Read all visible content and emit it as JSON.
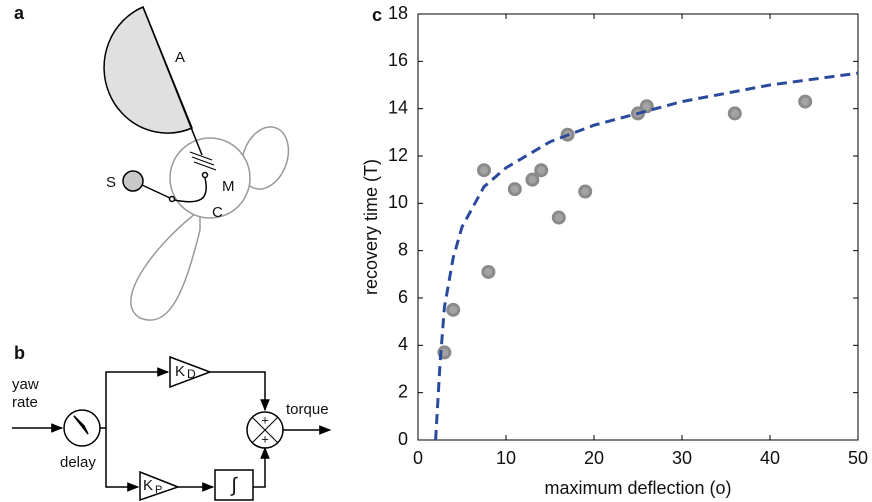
{
  "panel_a": {
    "label": "a",
    "labels": [
      "A",
      "M",
      "S",
      "C"
    ]
  },
  "panel_b": {
    "label": "b",
    "input": [
      "yaw",
      "rate"
    ],
    "delay": "delay",
    "output": "torque",
    "kd": "K",
    "kd_sub": "D",
    "kp": "K",
    "kp_sub": "P",
    "integral": "∫",
    "signs": [
      "+",
      "+"
    ]
  },
  "chart_data": {
    "type": "scatter",
    "panel_label": "c",
    "xlabel": "maximum deflection (o)",
    "ylabel": "recovery time (T)",
    "xlim": [
      0,
      50
    ],
    "ylim": [
      0,
      18
    ],
    "xticks": [
      0,
      10,
      20,
      30,
      40,
      50
    ],
    "yticks": [
      0,
      2,
      4,
      6,
      8,
      10,
      12,
      14,
      16,
      18
    ],
    "points": {
      "color": "#a3a3a3",
      "x": [
        3,
        4,
        7.5,
        8,
        11,
        13,
        14,
        16,
        17,
        19,
        25,
        26,
        36,
        44
      ],
      "y": [
        3.7,
        5.5,
        11.4,
        7.1,
        10.6,
        11.0,
        11.4,
        9.4,
        12.9,
        10.5,
        13.8,
        14.1,
        13.8,
        14.3
      ]
    },
    "fit": {
      "color": "#2a4a9e",
      "x": [
        2,
        2.5,
        3,
        4,
        5,
        7.5,
        10,
        15,
        20,
        25,
        30,
        40,
        50
      ],
      "y": [
        0,
        3.2,
        5.6,
        7.7,
        9.0,
        10.7,
        11.5,
        12.6,
        13.3,
        13.8,
        14.3,
        15.0,
        15.5
      ]
    }
  }
}
